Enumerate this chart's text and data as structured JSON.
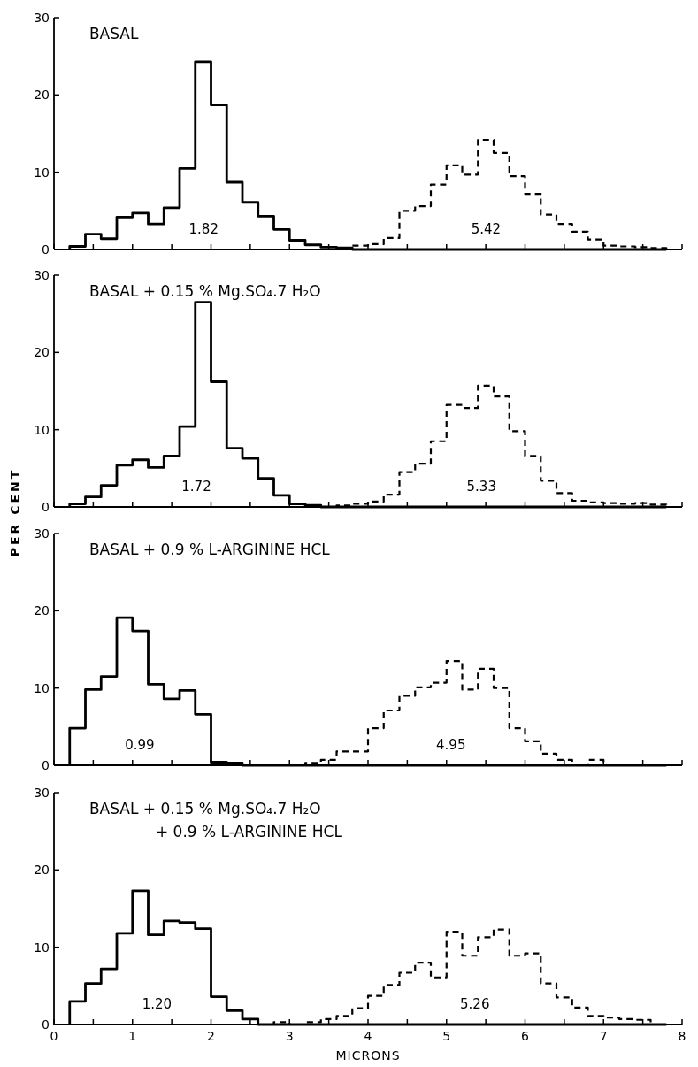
{
  "chart_data": [
    {
      "type": "histogram",
      "title": "BASAL",
      "bins": [
        0.2,
        0.4,
        0.6,
        0.8,
        1,
        1.2,
        1.4,
        1.6,
        1.8,
        2,
        2.2,
        2.4,
        2.6,
        2.8,
        3,
        3.2,
        3.4,
        3.6,
        3.8,
        4,
        4.2,
        4.4,
        4.6,
        4.8,
        5,
        5.2,
        5.4,
        5.6,
        5.8,
        6,
        6.2,
        6.4,
        6.6,
        6.8,
        7,
        7.2,
        7.4,
        7.6,
        7.8
      ],
      "xlim": [
        0,
        8
      ],
      "ylim": [
        0,
        30
      ],
      "yticks": [
        0,
        10,
        20,
        30
      ],
      "xticks": [
        0,
        {
          "value": 0.5,
          "label": null
        },
        1,
        {
          "value": 1.5,
          "label": null
        },
        2,
        {
          "value": 2.5,
          "label": null
        },
        3,
        {
          "value": 3.5,
          "label": null
        },
        4,
        {
          "value": 4.5,
          "label": null
        },
        5,
        {
          "value": 5.5,
          "label": null
        },
        6,
        {
          "value": 6.5,
          "label": null
        },
        7,
        {
          "value": 7.5,
          "label": null
        },
        8
      ],
      "tick_labels": "y",
      "series": [
        {
          "color": "#000000",
          "line_style": "solid",
          "values": [
            0.4,
            2.0,
            1.4,
            4.2,
            4.7,
            3.3,
            5.4,
            10.5,
            24.3,
            18.7,
            8.7,
            6.1,
            4.3,
            2.6,
            1.2,
            0.6,
            0.3,
            0.2,
            0,
            0,
            0,
            0,
            0,
            0,
            0,
            0,
            0,
            0,
            0,
            0,
            0,
            0,
            0,
            0,
            0,
            0,
            0,
            0
          ]
        },
        {
          "color": "#000000",
          "line_style": "dashed",
          "values": [
            0,
            0,
            0,
            0,
            0,
            0,
            0,
            0,
            0,
            0,
            0,
            0,
            0,
            0,
            0,
            0,
            0,
            0,
            0.5,
            0.7,
            1.5,
            5.0,
            5.6,
            8.4,
            10.9,
            9.7,
            14.2,
            12.5,
            9.5,
            7.2,
            4.5,
            3.3,
            2.3,
            1.3,
            0.5,
            0.4,
            0.3,
            0.2
          ]
        }
      ],
      "annotations": [
        "1.82",
        "5.42"
      ]
    },
    {
      "type": "histogram",
      "title": "BASAL + 0.15 % Mg.SO₄.7 H₂O",
      "ylabel": "PER CENT",
      "bins": [
        0.2,
        0.4,
        0.6,
        0.8,
        1,
        1.2,
        1.4,
        1.6,
        1.8,
        2,
        2.2,
        2.4,
        2.6,
        2.8,
        3,
        3.2,
        3.4,
        3.6,
        3.8,
        4,
        4.2,
        4.4,
        4.6,
        4.8,
        5,
        5.2,
        5.4,
        5.6,
        5.8,
        6,
        6.2,
        6.4,
        6.6,
        6.8,
        7,
        7.2,
        7.4,
        7.6,
        7.8
      ],
      "xlim": [
        0,
        8
      ],
      "ylim": [
        0,
        30
      ],
      "yticks": [
        0,
        10,
        20,
        30
      ],
      "xticks": [
        0,
        {
          "value": 0.5,
          "label": null
        },
        1,
        {
          "value": 1.5,
          "label": null
        },
        2,
        {
          "value": 2.5,
          "label": null
        },
        3,
        {
          "value": 3.5,
          "label": null
        },
        4,
        {
          "value": 4.5,
          "label": null
        },
        5,
        {
          "value": 5.5,
          "label": null
        },
        6,
        {
          "value": 6.5,
          "label": null
        },
        7,
        {
          "value": 7.5,
          "label": null
        },
        8
      ],
      "tick_labels": "y",
      "series": [
        {
          "color": "#000000",
          "line_style": "solid",
          "values": [
            0.4,
            1.3,
            2.8,
            5.4,
            6.1,
            5.1,
            6.6,
            10.4,
            26.5,
            16.2,
            7.6,
            6.3,
            3.7,
            1.5,
            0.4,
            0.2,
            0,
            0,
            0,
            0,
            0,
            0,
            0,
            0,
            0,
            0,
            0,
            0,
            0,
            0,
            0,
            0,
            0,
            0,
            0,
            0,
            0,
            0
          ]
        },
        {
          "color": "#000000",
          "line_style": "dashed",
          "values": [
            0,
            0,
            0,
            0,
            0,
            0,
            0,
            0,
            0,
            0,
            0,
            0,
            0,
            0,
            0,
            0,
            0,
            0.2,
            0.4,
            0.7,
            1.6,
            4.5,
            5.6,
            8.5,
            13.2,
            12.8,
            15.7,
            14.3,
            9.8,
            6.6,
            3.4,
            1.8,
            0.8,
            0.6,
            0.5,
            0.4,
            0.5,
            0.3
          ]
        }
      ],
      "annotations": [
        "1.72",
        "5.33"
      ]
    },
    {
      "type": "histogram",
      "title": "BASAL + 0.9 % L-ARGININE HCL",
      "bins": [
        0.2,
        0.4,
        0.6,
        0.8,
        1,
        1.2,
        1.4,
        1.6,
        1.8,
        2,
        2.2,
        2.4,
        2.6,
        2.8,
        3,
        3.2,
        3.4,
        3.6,
        3.8,
        4,
        4.2,
        4.4,
        4.6,
        4.8,
        5,
        5.2,
        5.4,
        5.6,
        5.8,
        6,
        6.2,
        6.4,
        6.6,
        6.8,
        7,
        7.2,
        7.4,
        7.6,
        7.8
      ],
      "xlim": [
        0,
        8
      ],
      "ylim": [
        0,
        30
      ],
      "yticks": [
        0,
        10,
        20,
        30
      ],
      "xticks": [
        0,
        {
          "value": 0.5,
          "label": null
        },
        1,
        {
          "value": 1.5,
          "label": null
        },
        2,
        {
          "value": 2.5,
          "label": null
        },
        3,
        {
          "value": 3.5,
          "label": null
        },
        4,
        {
          "value": 4.5,
          "label": null
        },
        5,
        {
          "value": 5.5,
          "label": null
        },
        6,
        {
          "value": 6.5,
          "label": null
        },
        7,
        {
          "value": 7.5,
          "label": null
        },
        8
      ],
      "tick_labels": "y",
      "series": [
        {
          "color": "#000000",
          "line_style": "solid",
          "values": [
            4.8,
            9.8,
            11.5,
            19.1,
            17.4,
            10.5,
            8.6,
            9.7,
            6.6,
            0.4,
            0.3,
            0,
            0,
            0,
            0,
            0,
            0,
            0,
            0,
            0,
            0,
            0,
            0,
            0,
            0,
            0,
            0,
            0,
            0,
            0,
            0,
            0,
            0,
            0,
            0,
            0,
            0,
            0
          ]
        },
        {
          "color": "#000000",
          "line_style": "dashed",
          "values": [
            0,
            0,
            0,
            0,
            0,
            0,
            0,
            0,
            0,
            0,
            0,
            0,
            0,
            0,
            0,
            0.3,
            0.7,
            1.8,
            1.8,
            4.8,
            7.1,
            9.0,
            10.1,
            10.7,
            13.5,
            9.8,
            12.5,
            10.0,
            4.8,
            3.1,
            1.5,
            0.7,
            0,
            0.7,
            0,
            0,
            0,
            0
          ]
        }
      ],
      "annotations": [
        "0.99",
        "4.95"
      ]
    },
    {
      "type": "histogram",
      "title": "BASAL + 0.15 % Mg.SO₄.7 H₂O\n+ 0.9 % L-ARGININE HCL",
      "xlabel": "MICRONS",
      "bins": [
        0.2,
        0.4,
        0.6,
        0.8,
        1,
        1.2,
        1.4,
        1.6,
        1.8,
        2,
        2.2,
        2.4,
        2.6,
        2.8,
        3,
        3.2,
        3.4,
        3.6,
        3.8,
        4,
        4.2,
        4.4,
        4.6,
        4.8,
        5,
        5.2,
        5.4,
        5.6,
        5.8,
        6,
        6.2,
        6.4,
        6.6,
        6.8,
        7,
        7.2,
        7.4,
        7.6,
        7.8
      ],
      "xlim": [
        0,
        8
      ],
      "ylim": [
        0,
        30
      ],
      "yticks": [
        0,
        10,
        20,
        30
      ],
      "xticks": [
        0,
        {
          "value": 0.5,
          "label": null
        },
        1,
        {
          "value": 1.5,
          "label": null
        },
        2,
        {
          "value": 2.5,
          "label": null
        },
        3,
        {
          "value": 3.5,
          "label": null
        },
        4,
        {
          "value": 4.5,
          "label": null
        },
        5,
        {
          "value": 5.5,
          "label": null
        },
        6,
        {
          "value": 6.5,
          "label": null
        },
        7,
        {
          "value": 7.5,
          "label": null
        },
        8
      ],
      "series": [
        {
          "color": "#000000",
          "line_style": "solid",
          "values": [
            3.0,
            5.3,
            7.2,
            11.8,
            17.3,
            11.6,
            13.4,
            13.2,
            12.4,
            3.6,
            1.8,
            0.7,
            0,
            0,
            0,
            0,
            0,
            0,
            0,
            0,
            0,
            0,
            0,
            0,
            0,
            0,
            0,
            0,
            0,
            0,
            0,
            0,
            0,
            0,
            0,
            0,
            0,
            0
          ]
        },
        {
          "color": "#000000",
          "line_style": "dashed",
          "values": [
            0,
            0,
            0,
            0,
            0,
            0,
            0,
            0,
            0,
            0,
            0,
            0,
            0,
            0.3,
            0,
            0.3,
            0.7,
            1.1,
            2.1,
            3.7,
            5.1,
            6.7,
            8.0,
            6.1,
            12.0,
            8.9,
            11.3,
            12.3,
            8.9,
            9.2,
            5.3,
            3.5,
            2.2,
            1.1,
            0.9,
            0.7,
            0.6,
            0
          ]
        }
      ],
      "annotations": [
        "1.20",
        "5.26"
      ]
    }
  ]
}
